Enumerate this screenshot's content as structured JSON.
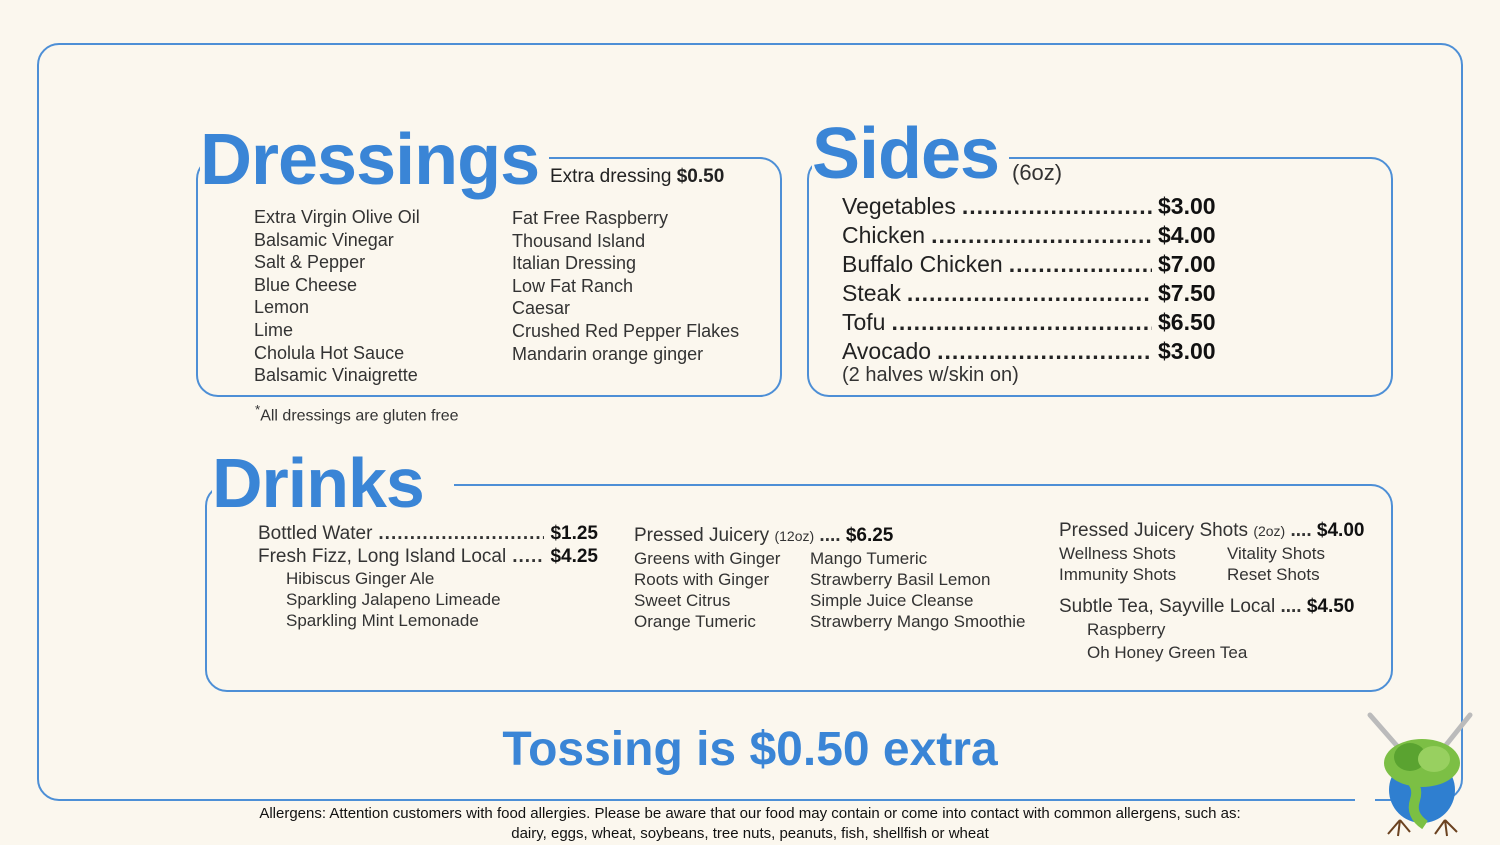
{
  "dressings": {
    "title": "Dressings",
    "extra_label": "Extra dressing",
    "extra_price": "$0.50",
    "col1": [
      "Extra Virgin Olive Oil",
      "Balsamic Vinegar",
      "Salt & Pepper",
      "Blue Cheese",
      "Lemon",
      "Lime",
      "Cholula Hot Sauce",
      "Balsamic Vinaigrette"
    ],
    "col2": [
      "Fat Free Raspberry",
      "Thousand Island",
      "Italian Dressing",
      "Low Fat Ranch",
      "Caesar",
      "Crushed Red Pepper Flakes",
      "Mandarin orange ginger"
    ],
    "footnote_mark": "*",
    "footnote": "All dressings are gluten free"
  },
  "sides": {
    "title": "Sides",
    "size": "(6oz)",
    "items": [
      {
        "name": "Vegetables",
        "price": "$3.00"
      },
      {
        "name": "Chicken",
        "price": "$4.00"
      },
      {
        "name": "Buffalo Chicken",
        "price": "$7.00"
      },
      {
        "name": "Steak",
        "price": "$7.50"
      },
      {
        "name": "Tofu",
        "price": "$6.50"
      },
      {
        "name": "Avocado",
        "price": "$3.00"
      }
    ],
    "avocado_note": "(2 halves w/skin on)"
  },
  "drinks": {
    "title": "Drinks",
    "water": {
      "name": "Bottled Water",
      "price": "$1.25"
    },
    "fizz": {
      "name": "Fresh Fizz, Long Island Local",
      "price": "$4.25",
      "items": [
        "Hibiscus Ginger Ale",
        "Sparkling Jalapeno Limeade",
        "Sparkling Mint Lemonade"
      ]
    },
    "juicery": {
      "name": "Pressed Juicery",
      "size": "(12oz)",
      "price": "$6.25",
      "col1": [
        "Greens with Ginger",
        "Roots with Ginger",
        "Sweet Citrus",
        "Orange Tumeric"
      ],
      "col2": [
        "Mango Tumeric",
        "Strawberry Basil Lemon",
        "Simple Juice Cleanse",
        "Strawberry Mango Smoothie"
      ]
    },
    "shots": {
      "name": "Pressed Juicery Shots",
      "size": "(2oz)",
      "price": "$4.00",
      "col1": [
        "Wellness Shots",
        "Immunity Shots"
      ],
      "col2": [
        "Vitality Shots",
        "Reset Shots"
      ]
    },
    "tea": {
      "name": "Subtle Tea, Sayville Local",
      "price": "$4.50",
      "items": [
        "Raspberry",
        "Oh Honey Green Tea"
      ]
    }
  },
  "tossing": "Tossing is $0.50 extra",
  "allergens": {
    "line1": "Allergens: Attention customers with food allergies. Please be aware that our food may contain or come into contact with common allergens, such as:",
    "line2": "dairy, eggs, wheat, soybeans, tree nuts, peanuts, fish, shellfish or wheat"
  },
  "colors": {
    "accent": "#3a85d6",
    "background": "#fbf7ee"
  }
}
